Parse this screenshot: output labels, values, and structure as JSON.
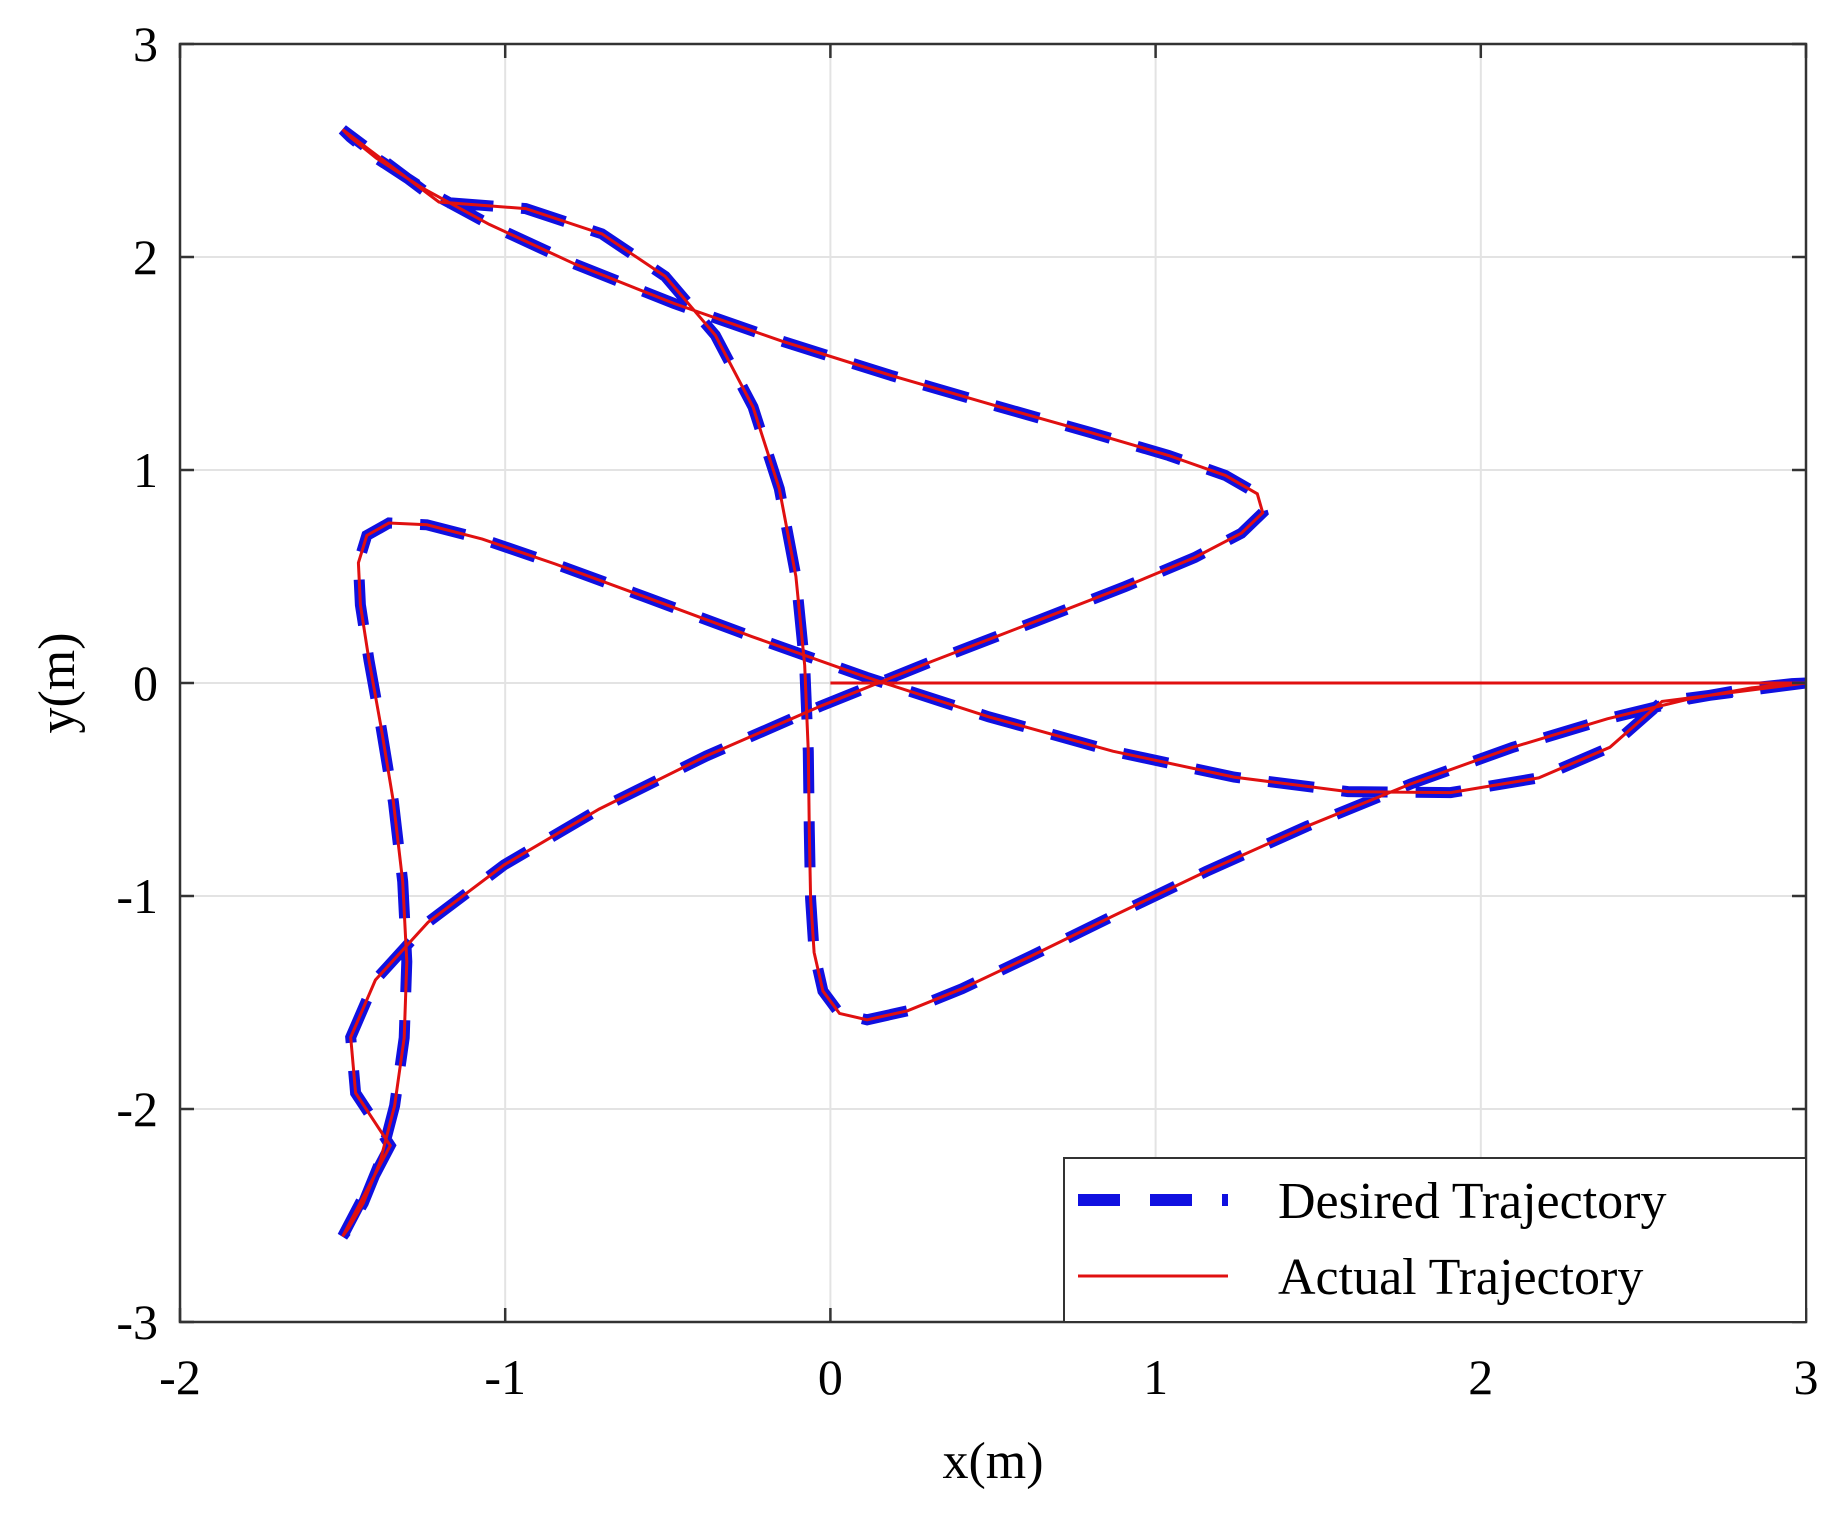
{
  "chart_data": {
    "type": "line",
    "title": "",
    "xlabel": "x(m)",
    "ylabel": "y(m)",
    "xlim": [
      -2,
      3
    ],
    "ylim": [
      -3,
      3
    ],
    "xticks": [
      "-2",
      "-1",
      "0",
      "1",
      "2",
      "3"
    ],
    "yticks": [
      "3",
      "2",
      "1",
      "0",
      "-1",
      "-2",
      "-3"
    ],
    "grid": true,
    "legend_position": "bottom-right",
    "series": [
      {
        "name": "Desired Trajectory",
        "style": "dashed",
        "color": "#1010e0",
        "points": [
          [
            3.0,
            0.0
          ],
          [
            2.957,
            -0.003
          ],
          [
            2.833,
            -0.023
          ],
          [
            2.64,
            -0.075
          ],
          [
            2.389,
            -0.168
          ],
          [
            2.098,
            -0.302
          ],
          [
            1.784,
            -0.474
          ],
          [
            1.465,
            -0.673
          ],
          [
            1.155,
            -0.885
          ],
          [
            0.869,
            -1.094
          ],
          [
            0.617,
            -1.282
          ],
          [
            0.405,
            -1.435
          ],
          [
            0.237,
            -1.539
          ],
          [
            0.113,
            -1.581
          ],
          [
            0.028,
            -1.551
          ],
          [
            -0.023,
            -1.446
          ],
          [
            -0.05,
            -1.265
          ],
          [
            -0.061,
            -1.012
          ],
          [
            -0.065,
            -0.693
          ],
          [
            -0.068,
            -0.321
          ],
          [
            -0.079,
            0.082
          ],
          [
            -0.106,
            0.501
          ],
          [
            -0.157,
            0.912
          ],
          [
            -0.238,
            1.296
          ],
          [
            -0.354,
            1.633
          ],
          [
            -0.508,
            1.909
          ],
          [
            -0.703,
            2.109
          ],
          [
            -0.937,
            2.227
          ],
          [
            -1.204,
            2.258
          ],
          [
            -1.5,
            2.598
          ]
        ]
      },
      {
        "name": "Actual Trajectory",
        "style": "solid",
        "color": "#e01010",
        "points": [
          [
            0.0,
            0.0
          ],
          [
            3.0,
            0.0
          ]
        ]
      }
    ]
  },
  "legend": {
    "entries": [
      {
        "label": "Desired Trajectory",
        "color": "#1010e0",
        "style": "dashed"
      },
      {
        "label": "Actual Trajectory",
        "color": "#e01010",
        "style": "solid"
      }
    ]
  }
}
